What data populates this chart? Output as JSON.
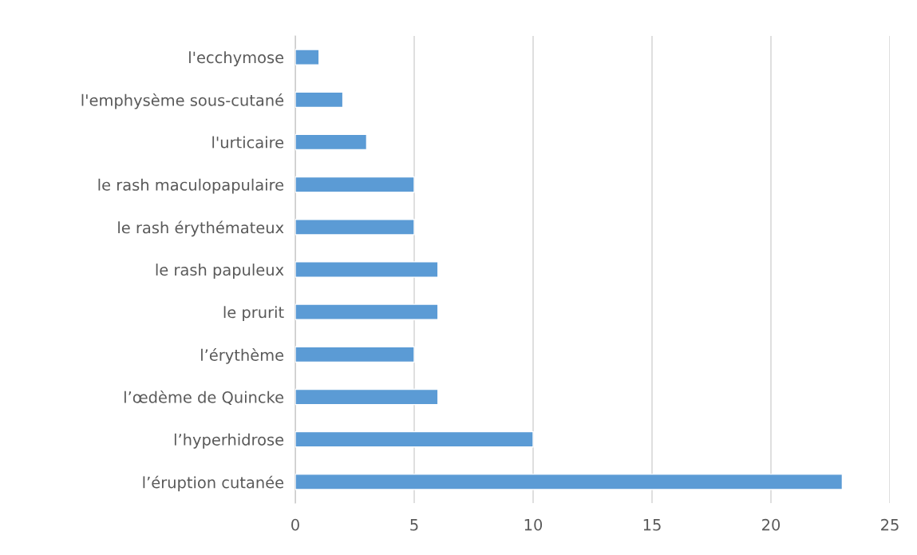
{
  "chart_data": {
    "type": "bar",
    "orientation": "horizontal",
    "categories": [
      "l'ecchymose",
      "l'emphysème sous-cutané",
      "l'urticaire",
      "le rash maculopapulaire",
      "le rash érythémateux",
      "le rash papuleux",
      "le prurit",
      "l’érythème",
      "l’œdème de Quincke",
      "l’hyperhidrose",
      "l’éruption cutanée"
    ],
    "values": [
      1,
      2,
      3,
      5,
      5,
      6,
      6,
      5,
      6,
      10,
      23
    ],
    "color": "#5b9bd5",
    "xlim": [
      0,
      25
    ],
    "xticks": [
      0,
      5,
      10,
      15,
      20,
      25
    ],
    "grid": "x"
  }
}
